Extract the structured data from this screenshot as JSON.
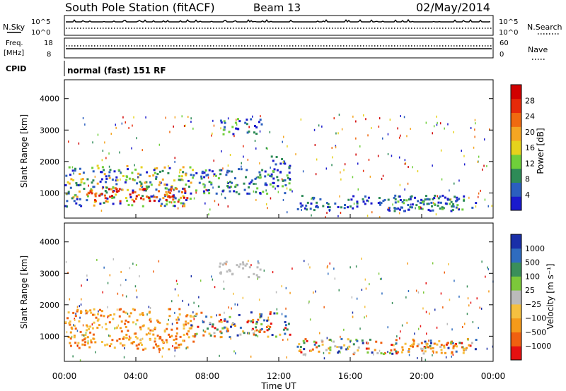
{
  "header": {
    "station": "South Pole Station (fitACF)",
    "beam": "Beam 13",
    "date": "02/May/2014"
  },
  "strip": {
    "nsky_label": "N.Sky",
    "nsky_ticks": [
      "10^5",
      "10^0"
    ],
    "nsearch_label": "N.Search",
    "nsearch_ticks": [
      "10^5",
      "10^0"
    ],
    "freq_label": "Freq.",
    "freq_unit": "[MHz]",
    "freq_ticks": [
      "18",
      "8"
    ],
    "nave_label": "Nave",
    "nave_ticks": [
      "60",
      "0"
    ],
    "cpid_label": "CPID",
    "cpid_value": "normal (fast) 151 RF"
  },
  "colors": {
    "power": [
      "#1a1acd",
      "#2b5fbf",
      "#2e8b57",
      "#6fcf3a",
      "#e6d21c",
      "#f5a623",
      "#f06a10",
      "#e62a0a",
      "#d10000"
    ],
    "velocity": [
      "#e61010",
      "#f06010",
      "#f59a1a",
      "#f5c040",
      "#bbbbbb",
      "#7cc83a",
      "#3a8f5a",
      "#2f6cbf",
      "#1a2fa8"
    ]
  },
  "chart_data": [
    {
      "type": "heatmap",
      "name": "power",
      "ylabel": "Slant Range [km]",
      "xlabel": "Time UT",
      "x_ticks": [
        "00:00",
        "04:00",
        "08:00",
        "12:00",
        "16:00",
        "20:00",
        "00:00"
      ],
      "y_ticks": [
        1000,
        2000,
        3000,
        4000
      ],
      "ylim": [
        200,
        4600
      ],
      "xlim_hours": [
        0,
        24
      ],
      "colorbar": {
        "label": "Power [dB]",
        "ticks": [
          "4",
          "8",
          "12",
          "16",
          "20",
          "24",
          "28"
        ]
      },
      "regions": [
        {
          "t0": 0.0,
          "t1": 7.2,
          "r0": 600,
          "r1": 1900,
          "level": "high"
        },
        {
          "t0": 1.2,
          "t1": 7.0,
          "r0": 750,
          "r1": 1200,
          "level": "peak"
        },
        {
          "t0": 7.0,
          "t1": 12.6,
          "r0": 1000,
          "r1": 1800,
          "level": "medium"
        },
        {
          "t0": 8.6,
          "t1": 11.0,
          "r0": 2900,
          "r1": 3400,
          "level": "medium"
        },
        {
          "t0": 11.5,
          "t1": 12.6,
          "r0": 1400,
          "r1": 2200,
          "level": "low"
        },
        {
          "t0": 13.0,
          "t1": 23.0,
          "r0": 450,
          "r1": 950,
          "level": "low"
        },
        {
          "t0": 18.5,
          "t1": 22.5,
          "r0": 500,
          "r1": 850,
          "level": "medium"
        }
      ]
    },
    {
      "type": "heatmap",
      "name": "velocity",
      "ylabel": "Slant Range [km]",
      "xlabel": "Time UT",
      "x_ticks": [
        "00:00",
        "04:00",
        "08:00",
        "12:00",
        "16:00",
        "20:00",
        "00:00"
      ],
      "y_ticks": [
        1000,
        2000,
        3000,
        4000
      ],
      "ylim": [
        200,
        4600
      ],
      "xlim_hours": [
        0,
        24
      ],
      "colorbar": {
        "label": "Velocity [m s⁻¹]",
        "ticks": [
          "1000",
          "500",
          "100",
          "25",
          "−25",
          "−100",
          "−500",
          "−1000"
        ]
      },
      "regions": [
        {
          "t0": 0.0,
          "t1": 7.2,
          "r0": 600,
          "r1": 1900,
          "level": "negative"
        },
        {
          "t0": 7.0,
          "t1": 12.6,
          "r0": 1000,
          "r1": 1800,
          "level": "mixed"
        },
        {
          "t0": 8.6,
          "t1": 11.0,
          "r0": 2900,
          "r1": 3400,
          "level": "near-zero"
        },
        {
          "t0": 13.0,
          "t1": 23.0,
          "r0": 450,
          "r1": 950,
          "level": "mixed"
        },
        {
          "t0": 18.5,
          "t1": 22.5,
          "r0": 500,
          "r1": 850,
          "level": "negative"
        }
      ]
    }
  ]
}
